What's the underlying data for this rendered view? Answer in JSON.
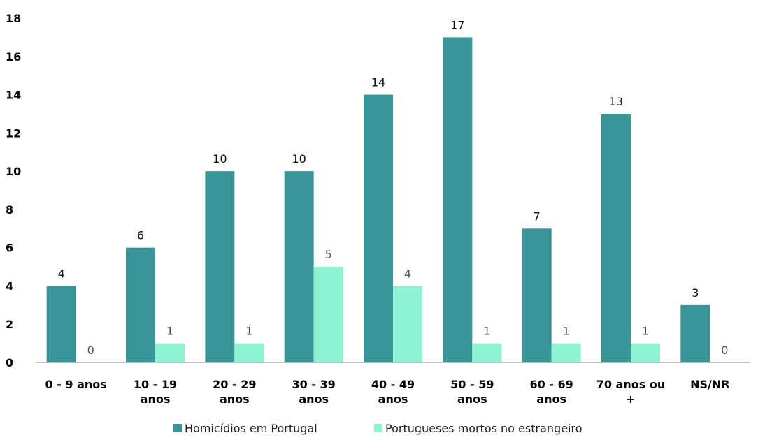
{
  "chart_data": {
    "type": "bar",
    "categories": [
      [
        "0 - 9 anos"
      ],
      [
        "10 - 19",
        "anos"
      ],
      [
        "20 - 29",
        "anos"
      ],
      [
        "30 - 39",
        "anos"
      ],
      [
        "40 - 49",
        "anos"
      ],
      [
        "50 - 59",
        "anos"
      ],
      [
        "60 - 69",
        "anos"
      ],
      [
        "70 anos ou",
        "+"
      ],
      [
        "NS/NR"
      ]
    ],
    "series": [
      {
        "name": "Homicídios em Portugal",
        "color": "#3a9598",
        "values": [
          4,
          6,
          10,
          10,
          14,
          17,
          7,
          13,
          3
        ]
      },
      {
        "name": "Portugueses mortos no estrangeiro",
        "color": "#8ff2d3",
        "values": [
          0,
          1,
          1,
          5,
          4,
          1,
          1,
          1,
          0
        ]
      }
    ],
    "ylim": [
      0,
      18
    ],
    "yticks": [
      0,
      2,
      4,
      6,
      8,
      10,
      12,
      14,
      16,
      18
    ],
    "grid": false,
    "legend": "bottom-center",
    "title": "",
    "xlabel": "",
    "ylabel": ""
  }
}
